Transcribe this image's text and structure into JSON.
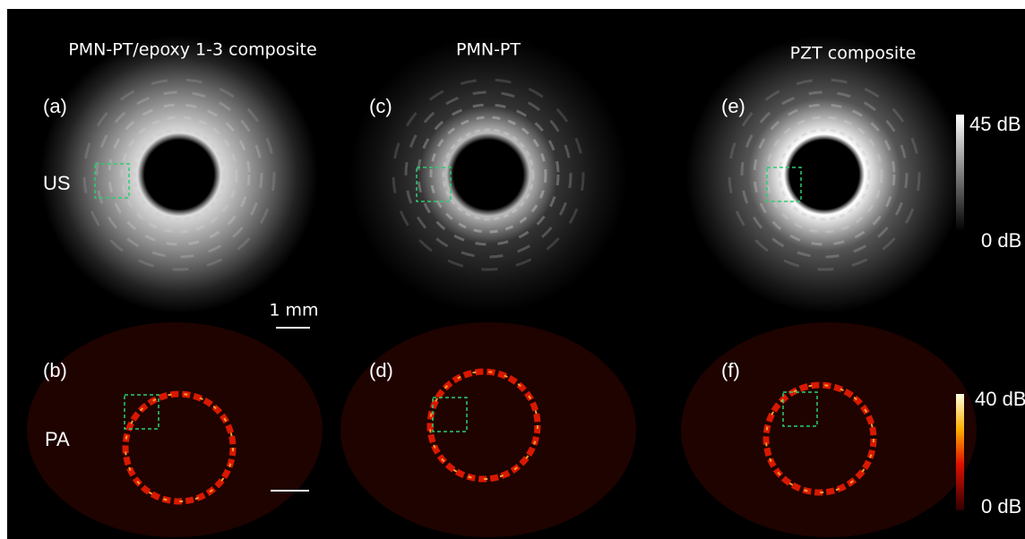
{
  "columns": [
    {
      "title": "PMN-PT/epoxy 1-3 composite"
    },
    {
      "title": "PMN-PT"
    },
    {
      "title": "PZT composite"
    }
  ],
  "panels": [
    {
      "label": "(a)"
    },
    {
      "label": "(b)"
    },
    {
      "label": "(c)"
    },
    {
      "label": "(d)"
    },
    {
      "label": "(e)"
    },
    {
      "label": "(f)"
    }
  ],
  "row_labels": [
    "US",
    "PA"
  ],
  "scale_bar": "1 mm",
  "colorbars": [
    {
      "max_label": "45 dB",
      "min_label": "0 dB"
    },
    {
      "max_label": "40 dB",
      "min_label": "0 dB"
    }
  ]
}
